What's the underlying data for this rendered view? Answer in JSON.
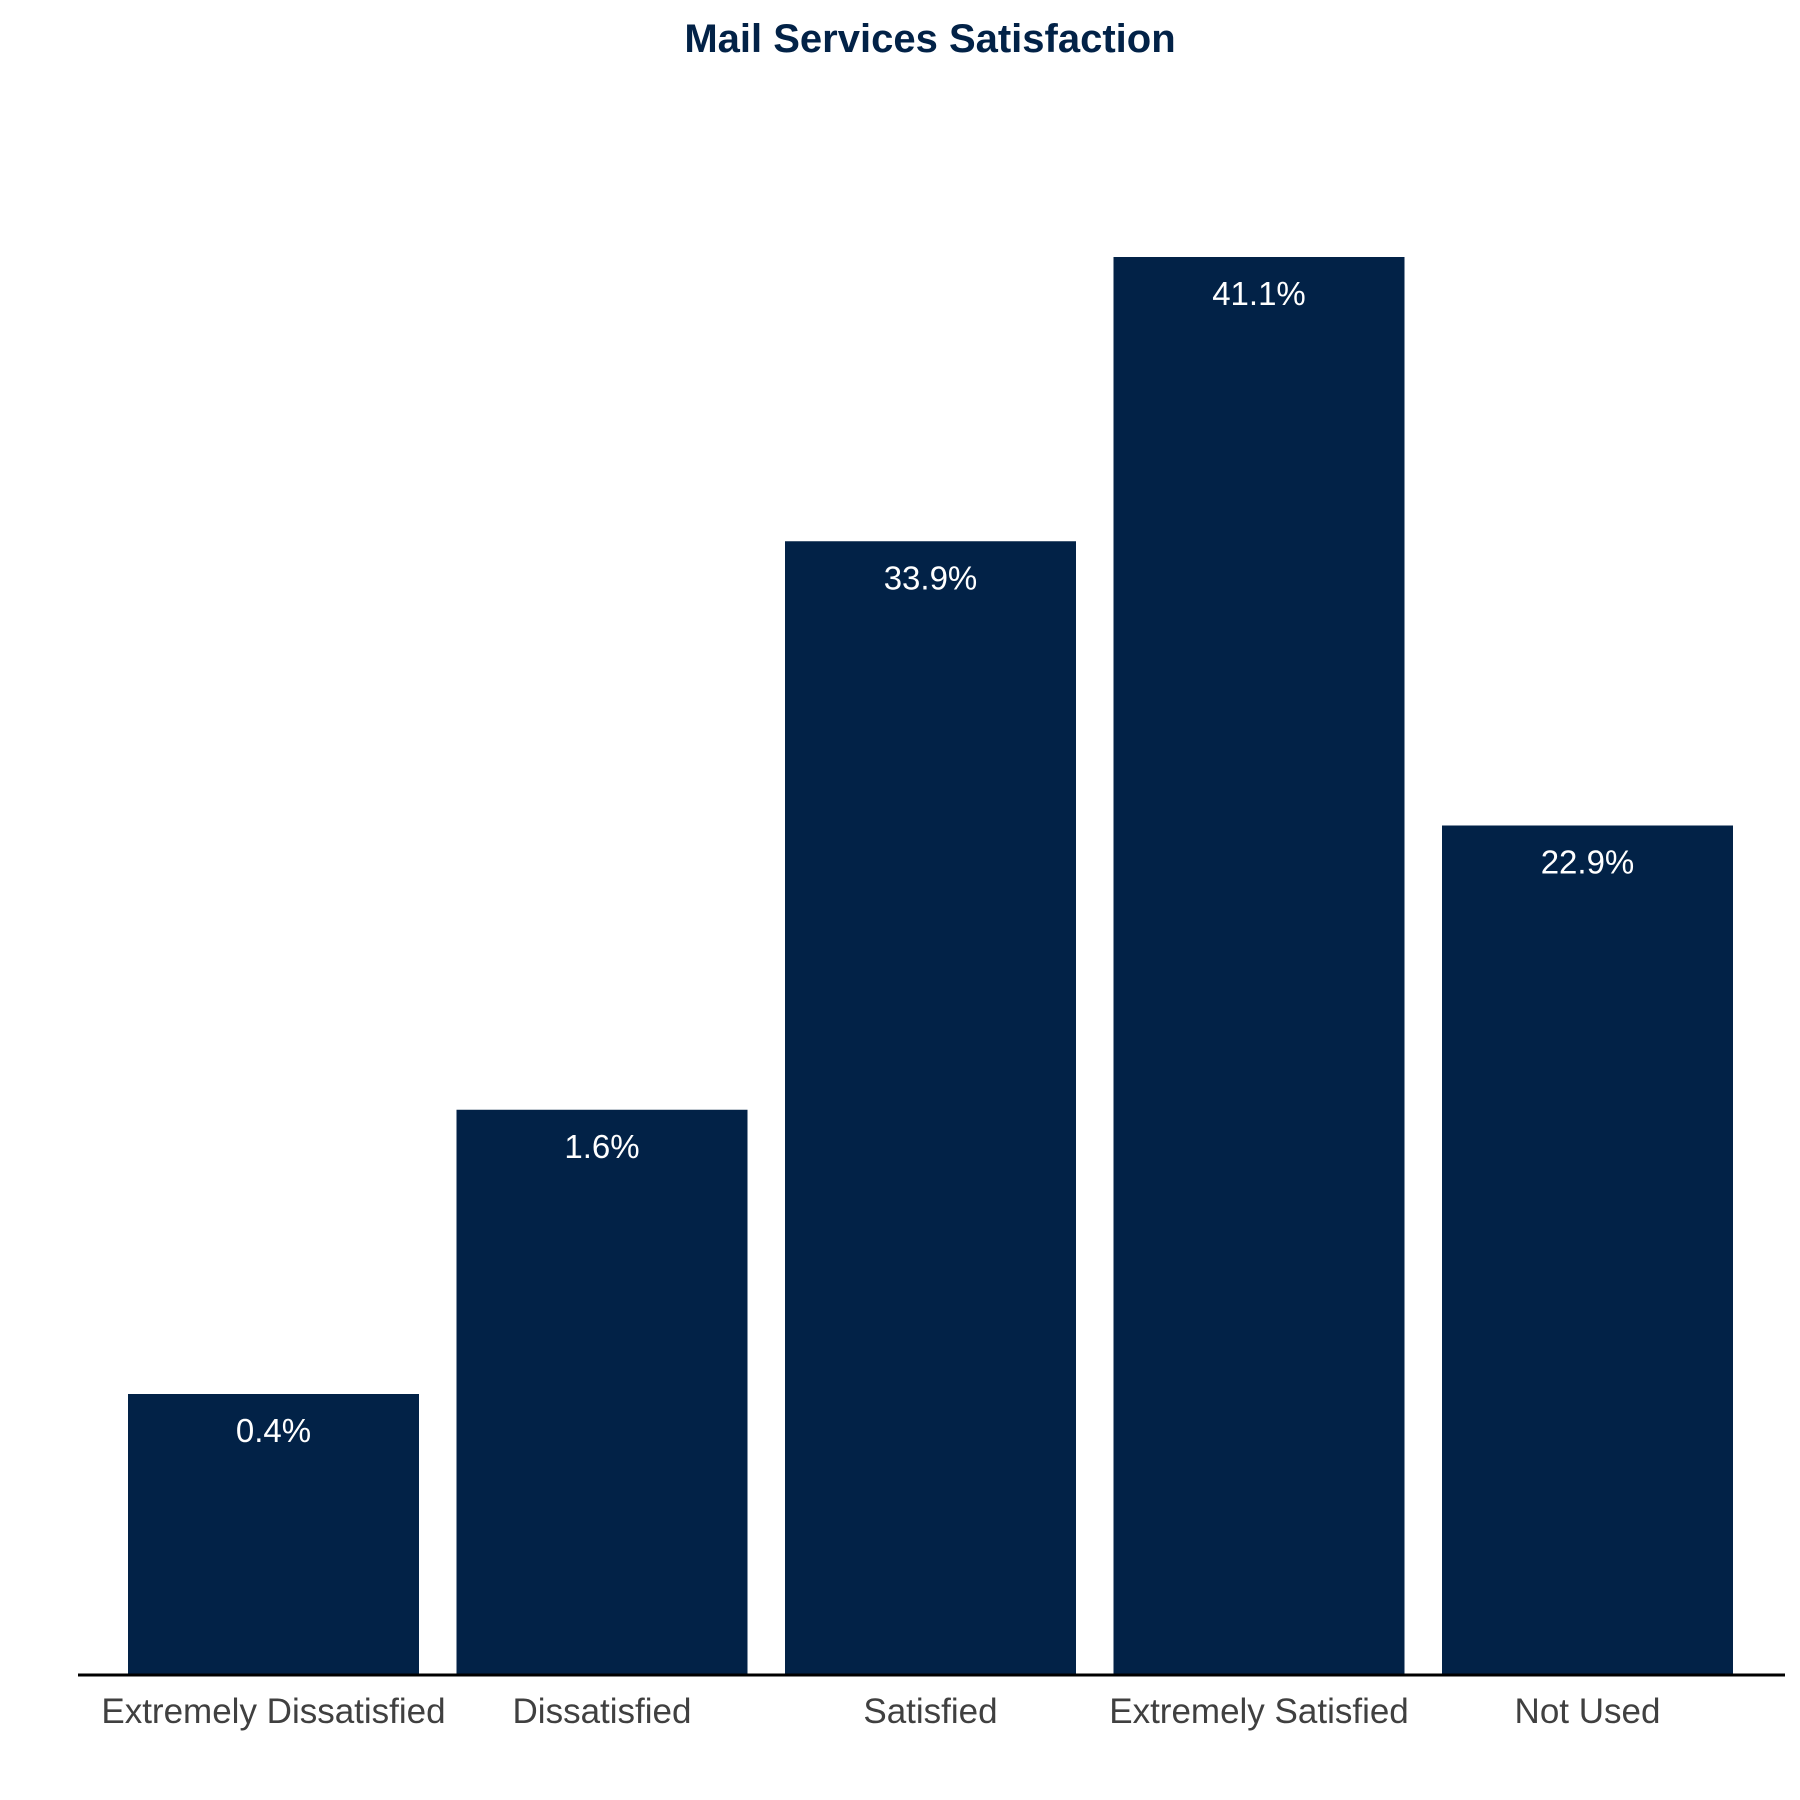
{
  "chart_data": {
    "type": "bar",
    "title": "Mail Services Satisfaction",
    "xlabel": "",
    "ylabel": "",
    "categories": [
      "Extremely Dissatisfied",
      "Dissatisfied",
      "Satisfied",
      "Extremely Satisfied",
      "Not Used"
    ],
    "values": [
      0.4,
      1.6,
      33.9,
      41.1,
      22.9
    ],
    "data_labels": [
      "0.4%",
      "1.6%",
      "33.9%",
      "41.1%",
      "22.9%"
    ],
    "grid": false,
    "legend": "none",
    "colors": {
      "bar": "#022247",
      "title": "#022247",
      "axis": "#000000",
      "label": "#ffffff",
      "tick": "#404040"
    }
  }
}
